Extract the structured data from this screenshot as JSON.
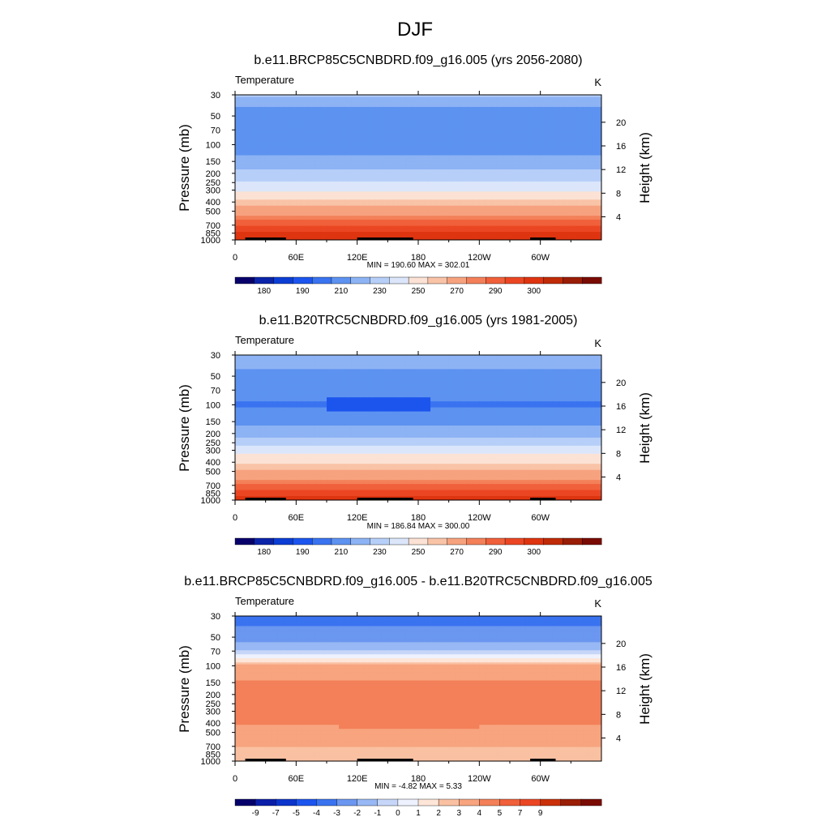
{
  "figure": {
    "title": "DJF",
    "colors": {
      "abs_palette": [
        "#08006b",
        "#0b24a9",
        "#0c3ed4",
        "#1c55ee",
        "#3a73f0",
        "#5d92f0",
        "#8db3f4",
        "#b6cff8",
        "#dbe6fb",
        "#fbe2d4",
        "#f9c3a7",
        "#f7a27f",
        "#f38059",
        "#f0603a",
        "#eb4623",
        "#de3410",
        "#c02b08",
        "#9a1d06",
        "#7a0b03"
      ],
      "diff_palette": [
        "#06006b",
        "#0b1ea9",
        "#0c35cc",
        "#1c55ee",
        "#3a73f0",
        "#6b97f0",
        "#97b8f4",
        "#c6d6f8",
        "#eef2ff",
        "#fde6d8",
        "#f9c1a2",
        "#f7a47f",
        "#f38059",
        "#f0603a",
        "#eb4623",
        "#c93009",
        "#9a1d06",
        "#7a0b03"
      ]
    }
  },
  "chart_data": [
    {
      "type": "heatmap",
      "title": "b.e11.BRCP85C5CNBDRD.f09_g16.005 (yrs 2056-2080)",
      "variable": "Temperature",
      "units": "K",
      "xlabel": "",
      "ylabel": "Pressure (mb)",
      "ylabel_right": "Height (km)",
      "x_ticks": [
        "0",
        "60E",
        "120E",
        "180",
        "120W",
        "60W"
      ],
      "x_tick_values": [
        0,
        60,
        120,
        180,
        240,
        300
      ],
      "xlim": [
        0,
        360
      ],
      "y_ticks": [
        30,
        50,
        70,
        100,
        150,
        200,
        250,
        300,
        400,
        500,
        700,
        850,
        1000
      ],
      "ylim": [
        30,
        1000
      ],
      "y_right_ticks": [
        4,
        8,
        12,
        16,
        20
      ],
      "levels_hpa": [
        30,
        50,
        70,
        100,
        150,
        200,
        250,
        300,
        400,
        500,
        700,
        850,
        1000
      ],
      "profile": [
        221,
        203,
        201,
        204,
        214,
        222,
        231,
        239,
        254,
        266,
        280,
        286,
        290
      ],
      "profile_by_lon": {
        "lon": [
          0,
          30,
          60,
          90,
          120,
          150,
          180,
          210,
          240,
          270,
          300,
          330,
          360
        ],
        "tropopause_offset": [
          0,
          0,
          0,
          0,
          0,
          0,
          0,
          0,
          0,
          0,
          0,
          0,
          0
        ]
      },
      "stats": "MIN = 190.60  MAX = 302.01",
      "colorbar": {
        "type": "absolute",
        "labels": [
          "180",
          "190",
          "210",
          "230",
          "250",
          "270",
          "290",
          "300"
        ],
        "bounds": [
          -1000000000.0,
          175,
          180,
          185,
          190,
          200,
          210,
          220,
          230,
          240,
          250,
          260,
          270,
          275,
          280,
          285,
          290,
          295,
          300,
          1000000000.0
        ]
      }
    },
    {
      "type": "heatmap",
      "title": "b.e11.B20TRC5CNBDRD.f09_g16.005 (yrs 1981-2005)",
      "variable": "Temperature",
      "units": "K",
      "xlabel": "",
      "ylabel": "Pressure (mb)",
      "ylabel_right": "Height (km)",
      "x_ticks": [
        "0",
        "60E",
        "120E",
        "180",
        "120W",
        "60W"
      ],
      "x_tick_values": [
        0,
        60,
        120,
        180,
        240,
        300
      ],
      "xlim": [
        0,
        360
      ],
      "y_ticks": [
        30,
        50,
        70,
        100,
        150,
        200,
        250,
        300,
        400,
        500,
        700,
        850,
        1000
      ],
      "ylim": [
        30,
        1000
      ],
      "y_right_ticks": [
        4,
        8,
        12,
        16,
        20
      ],
      "levels_hpa": [
        30,
        50,
        70,
        100,
        150,
        200,
        250,
        300,
        400,
        500,
        700,
        850,
        1000
      ],
      "profile": [
        219,
        206,
        203,
        199,
        207,
        216,
        226,
        235,
        249,
        261,
        276,
        283,
        287
      ],
      "cold_anomaly": {
        "lon_range": [
          90,
          190
        ],
        "p_range": [
          85,
          115
        ],
        "value": 188
      },
      "stats": "MIN = 186.84  MAX = 300.00",
      "colorbar": {
        "type": "absolute",
        "labels": [
          "180",
          "190",
          "210",
          "230",
          "250",
          "270",
          "290",
          "300"
        ],
        "bounds": [
          -1000000000.0,
          175,
          180,
          185,
          190,
          200,
          210,
          220,
          230,
          240,
          250,
          260,
          270,
          275,
          280,
          285,
          290,
          295,
          300,
          1000000000.0
        ]
      }
    },
    {
      "type": "heatmap",
      "title": "b.e11.BRCP85C5CNBDRD.f09_g16.005 - b.e11.B20TRC5CNBDRD.f09_g16.005",
      "variable": "Temperature",
      "units": "K",
      "xlabel": "",
      "ylabel": "Pressure (mb)",
      "ylabel_right": "Height (km)",
      "x_ticks": [
        "0",
        "60E",
        "120E",
        "180",
        "120W",
        "60W"
      ],
      "x_tick_values": [
        0,
        60,
        120,
        180,
        240,
        300
      ],
      "xlim": [
        0,
        360
      ],
      "y_ticks": [
        30,
        50,
        70,
        100,
        150,
        200,
        250,
        300,
        400,
        500,
        700,
        850,
        1000
      ],
      "ylim": [
        30,
        1000
      ],
      "y_right_ticks": [
        4,
        8,
        12,
        16,
        20
      ],
      "levels_hpa": [
        30,
        50,
        70,
        100,
        150,
        200,
        250,
        300,
        400,
        500,
        700,
        850,
        1000
      ],
      "profile": [
        -3.5,
        -2.5,
        -0.8,
        3.2,
        4.1,
        4.6,
        4.5,
        4.6,
        4.1,
        3.4,
        3.0,
        2.7,
        2.5
      ],
      "warm_core": {
        "lon_range": [
          100,
          240
        ],
        "p_range": [
          150,
          450
        ],
        "value": 4.7
      },
      "stats": "MIN = -4.82  MAX =  5.33",
      "colorbar": {
        "type": "difference",
        "labels": [
          "-9",
          "-7",
          "-5",
          "-4",
          "-3",
          "-2",
          "-1",
          "0",
          "1",
          "2",
          "3",
          "4",
          "5",
          "7",
          "9"
        ],
        "bounds": [
          -1000000000.0,
          -9,
          -7,
          -5,
          -4,
          -3,
          -2,
          -1,
          0,
          1,
          2,
          3,
          4,
          5,
          7,
          9,
          1000000000.0
        ]
      }
    }
  ]
}
